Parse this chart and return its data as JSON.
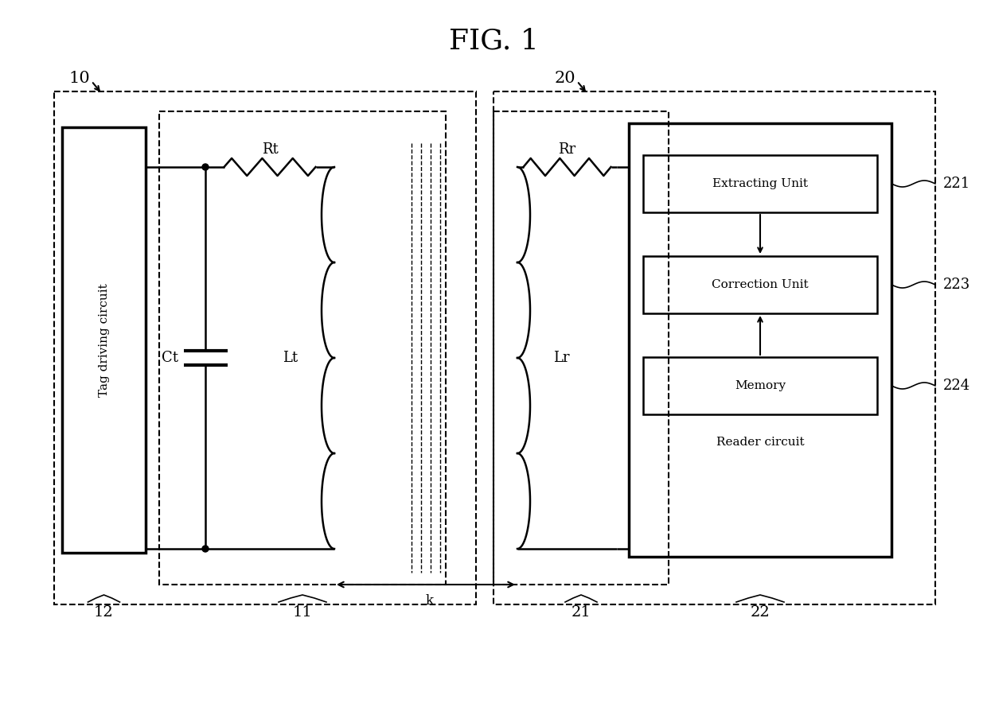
{
  "title": "FIG. 1",
  "title_fontsize": 26,
  "bg_color": "#ffffff",
  "line_color": "#000000",
  "label_10": "10",
  "label_20": "20",
  "label_12": "12",
  "label_11": "11",
  "label_21": "21",
  "label_22": "22",
  "label_Rt": "Rt",
  "label_Rr": "Rr",
  "label_Ct": "Ct",
  "label_Lt": "Lt",
  "label_Lr": "Lr",
  "label_k": "k",
  "label_tag_driving": "Tag driving circuit",
  "label_reader_circuit": "Reader circuit",
  "label_extracting": "Extracting Unit",
  "label_correction": "Correction Unit",
  "label_memory": "Memory",
  "label_221": "221",
  "label_223": "223",
  "label_224": "224"
}
